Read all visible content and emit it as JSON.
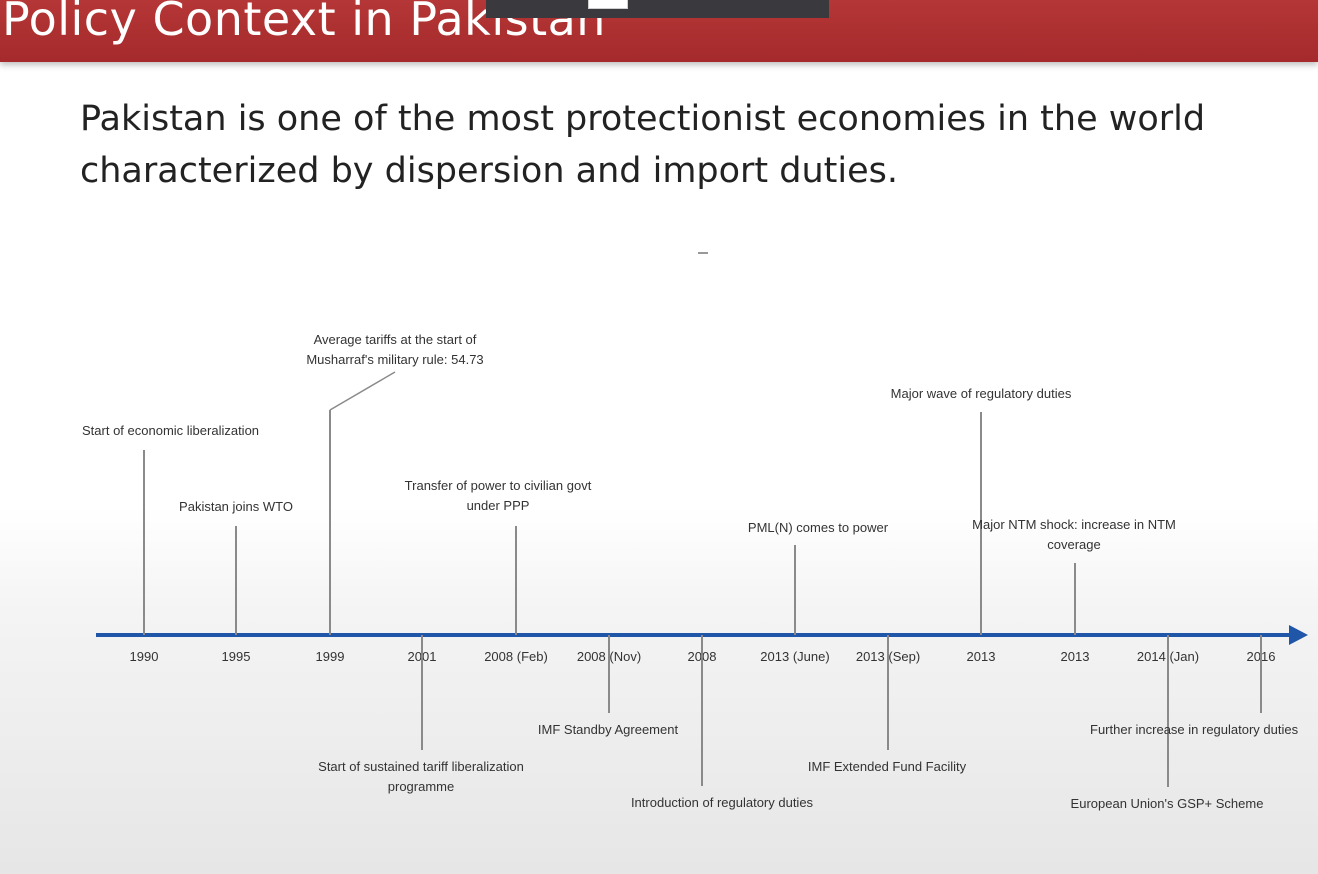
{
  "slide": {
    "title": "Policy Context in Pakistan",
    "subtitle_lines": [
      "Pakistan is one of the most protectionist economies in the world",
      "characterized by dispersion and import duties."
    ]
  },
  "colors": {
    "header": "#a52a2c",
    "axis": "#1f56a8"
  },
  "timeline": {
    "ticks": [
      "1990",
      "1995",
      "1999",
      "2001",
      "2008 (Feb)",
      "2008 (Nov)",
      "2008",
      "2013 (June)",
      "2013 (Sep)",
      "2013",
      "2013",
      "2014 (Jan)",
      "2016"
    ],
    "events_above": [
      {
        "tick": 0,
        "lines": [
          "Start of economic liberalization"
        ]
      },
      {
        "tick": 1,
        "lines": [
          "Pakistan joins WTO"
        ]
      },
      {
        "tick": 2,
        "lines": [
          "Average tariffs at the start of",
          "Musharraf's military rule: 54.73"
        ]
      },
      {
        "tick": 4,
        "lines": [
          "Transfer of power to civilian govt",
          "under PPP"
        ]
      },
      {
        "tick": 7,
        "lines": [
          "PML(N) comes to power"
        ]
      },
      {
        "tick": 9,
        "lines": [
          "Major wave of regulatory duties"
        ]
      },
      {
        "tick": 10,
        "lines": [
          "Major NTM shock: increase in NTM",
          "coverage"
        ]
      }
    ],
    "events_below": [
      {
        "tick": 3,
        "lines": [
          "Start of sustained tariff liberalization",
          "programme"
        ]
      },
      {
        "tick": 5,
        "lines": [
          "IMF Standby Agreement"
        ]
      },
      {
        "tick": 6,
        "lines": [
          "Introduction of regulatory duties"
        ]
      },
      {
        "tick": 8,
        "lines": [
          "IMF Extended Fund Facility"
        ]
      },
      {
        "tick": 11,
        "lines": [
          "European Union's GSP+ Scheme"
        ]
      },
      {
        "tick": 12,
        "lines": [
          "Further increase in regulatory duties"
        ]
      }
    ]
  }
}
